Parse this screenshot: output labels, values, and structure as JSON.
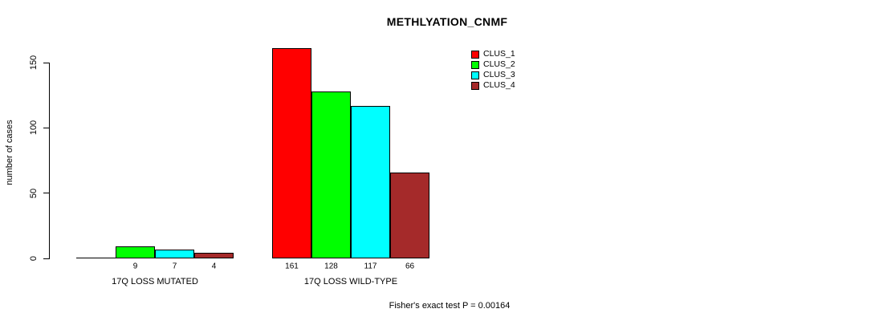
{
  "chart_data": {
    "type": "bar",
    "title": "METHLYATION_CNMF",
    "ylabel": "number of cases",
    "xlabel": "",
    "ylim": [
      0,
      165
    ],
    "yticks": [
      0,
      50,
      100,
      150
    ],
    "grid": false,
    "legend_position": "top-right",
    "series": [
      {
        "name": "CLUS_1",
        "color": "#FF0000"
      },
      {
        "name": "CLUS_2",
        "color": "#00FF00"
      },
      {
        "name": "CLUS_3",
        "color": "#00FFFF"
      },
      {
        "name": "CLUS_4",
        "color": "#A52A2A"
      }
    ],
    "groups": [
      {
        "label": "17Q LOSS MUTATED",
        "values": [
          0,
          9,
          7,
          4
        ],
        "bar_labels": [
          "",
          "9",
          "7",
          "4"
        ]
      },
      {
        "label": "17Q LOSS WILD-TYPE",
        "values": [
          161,
          128,
          117,
          66
        ],
        "bar_labels": [
          "161",
          "128",
          "117",
          "66"
        ]
      }
    ],
    "annotation": "Fisher's exact test P = 0.00164"
  }
}
